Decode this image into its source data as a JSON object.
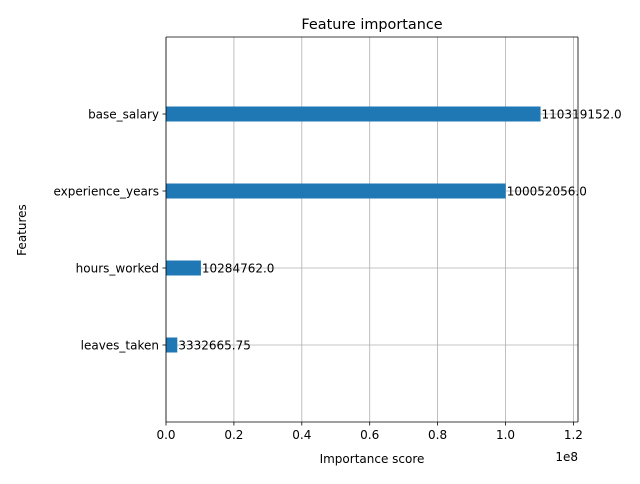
{
  "chart_data": {
    "type": "bar",
    "orientation": "horizontal",
    "title": "Feature importance",
    "xlabel": "Importance score",
    "ylabel": "Features",
    "x_offset_label": "1e8",
    "categories": [
      "base_salary",
      "experience_years",
      "hours_worked",
      "leaves_taken"
    ],
    "values": [
      110319152.0,
      100052056.0,
      10284762.0,
      3332665.75
    ],
    "value_labels": [
      "110319152.0",
      "100052056.0",
      "10284762.0",
      "3332665.75"
    ],
    "x_ticks": [
      0,
      20000000,
      40000000,
      60000000,
      80000000,
      100000000,
      120000000
    ],
    "x_tick_labels": [
      "0.0",
      "0.2",
      "0.4",
      "0.6",
      "0.8",
      "1.0",
      "1.2"
    ],
    "xlim": [
      0,
      121351067
    ],
    "grid": true,
    "bar_color": "#1f77b4"
  }
}
